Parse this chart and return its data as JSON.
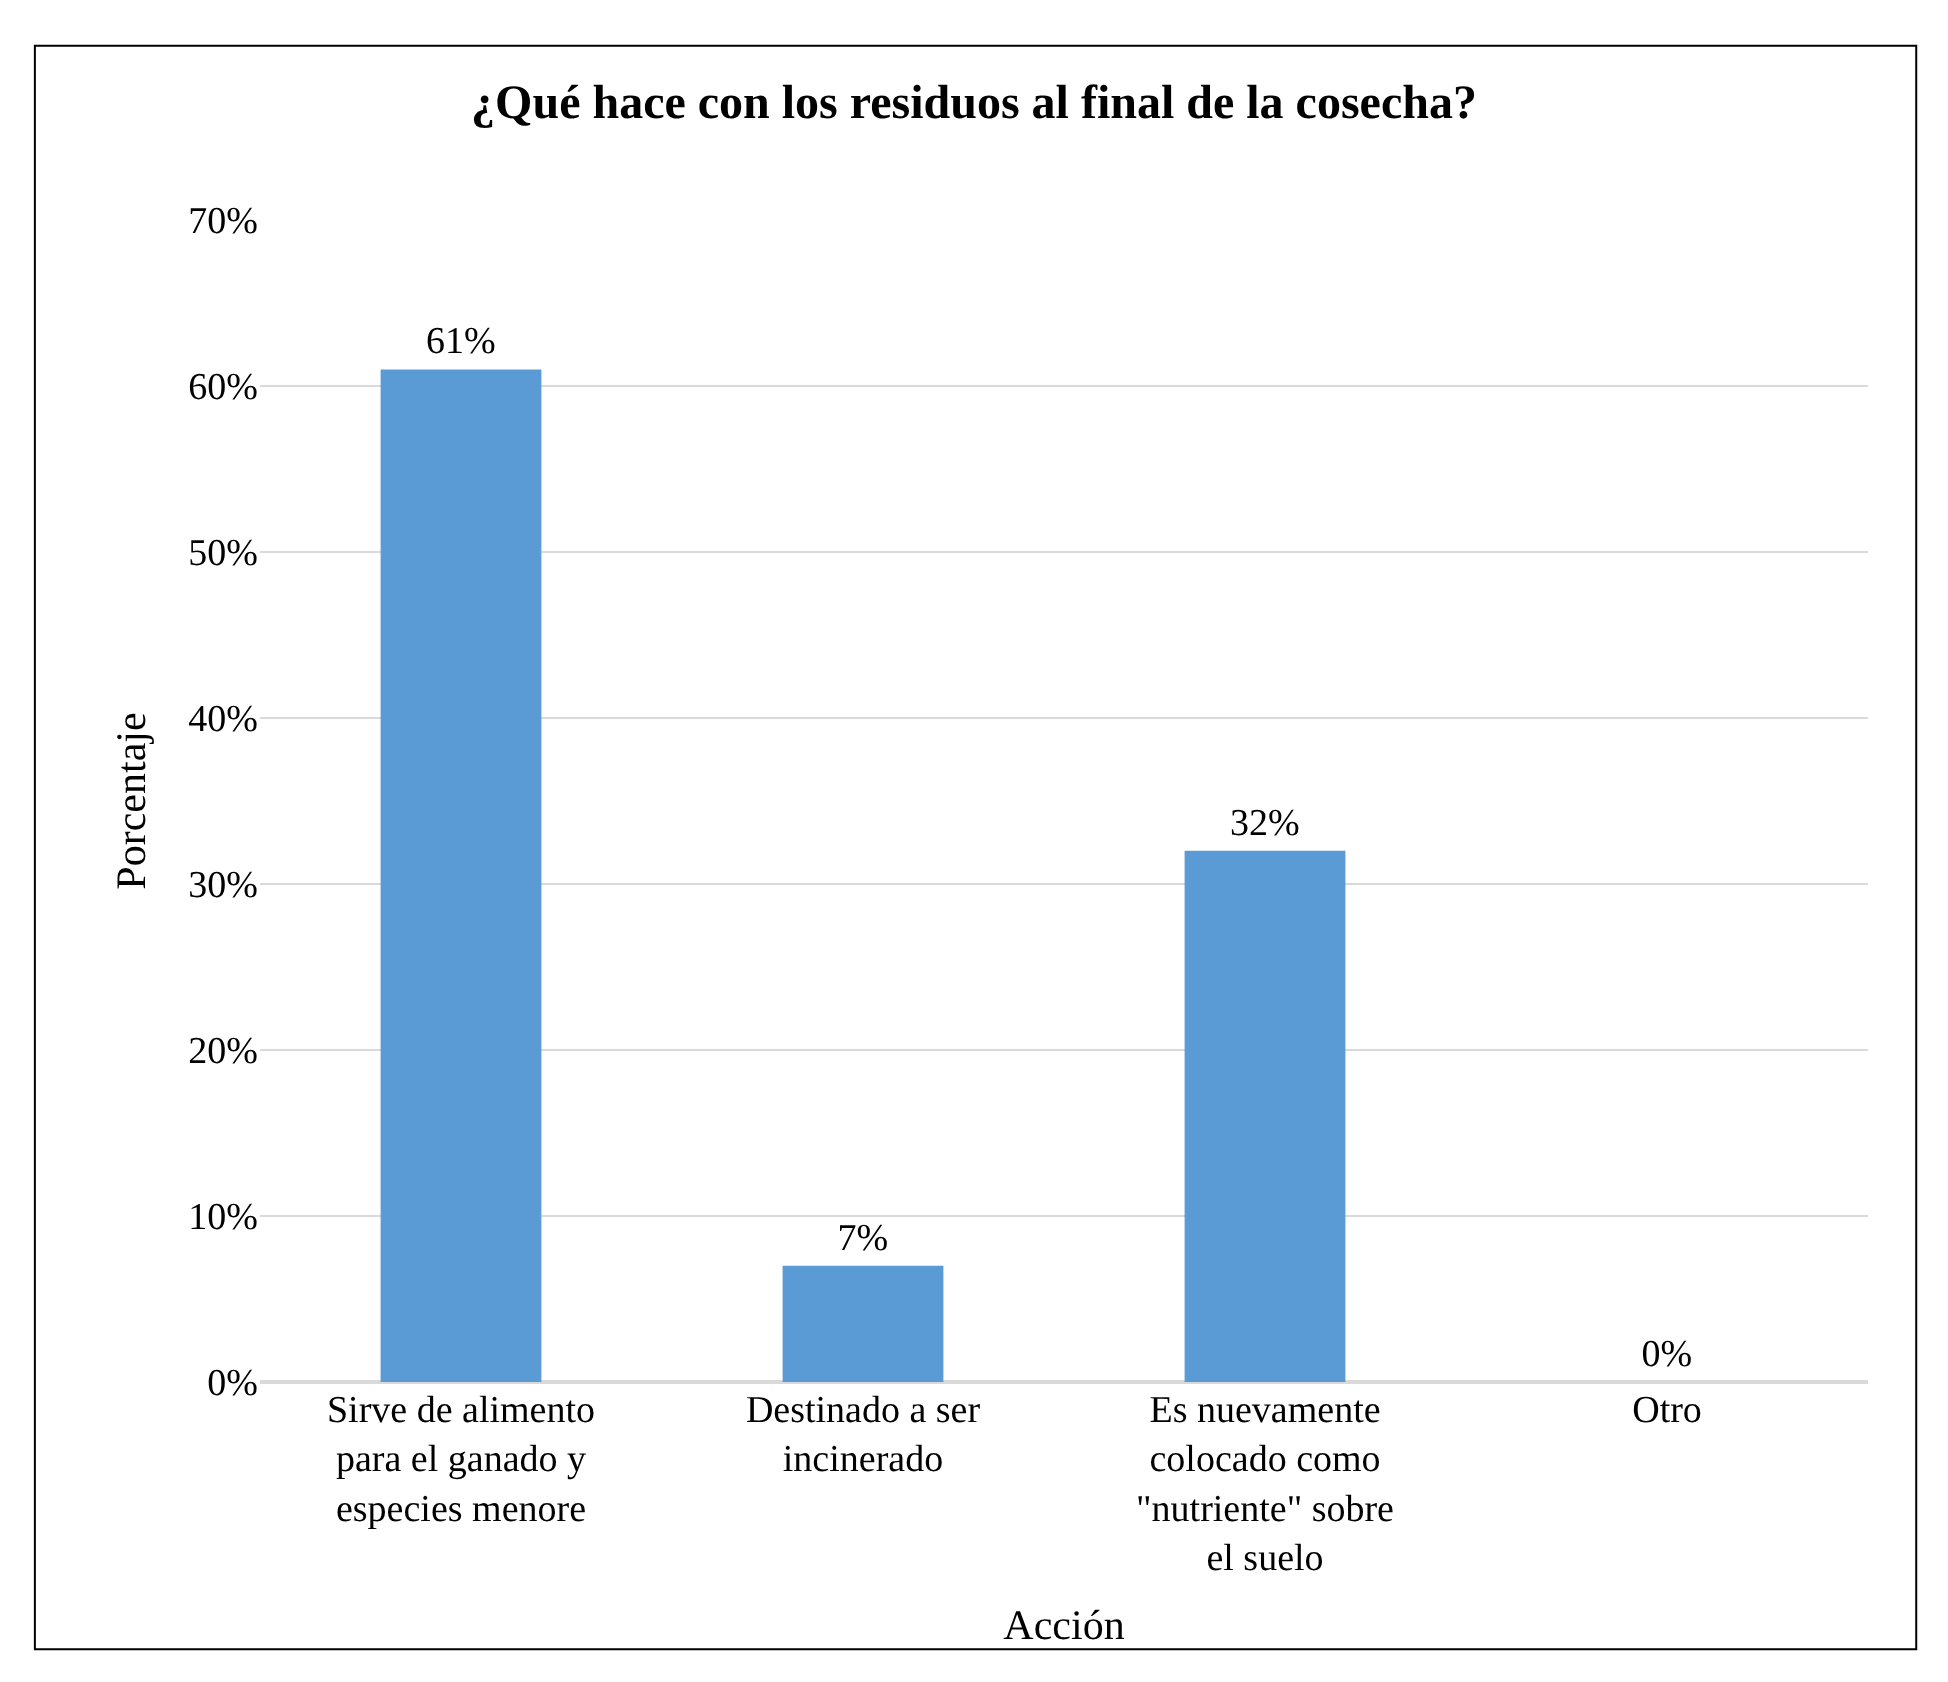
{
  "chart_data": {
    "type": "bar",
    "title": "¿Qué hace con los residuos al final de la cosecha?",
    "xlabel": "Acción",
    "ylabel": "Porcentaje",
    "categories": [
      "Sirve de alimento para el ganado y especies menore",
      "Destinado a ser incinerado",
      "Es nuevamente colocado como \"nutriente\" sobre el suelo",
      "Otro"
    ],
    "values": [
      61,
      7,
      32,
      0
    ],
    "value_labels": [
      "61%",
      "7%",
      "32%",
      "0%"
    ],
    "color": "#5b9bd5",
    "ylim": [
      0,
      70
    ],
    "yticks": [
      {
        "value": 0,
        "label": "0%"
      },
      {
        "value": 10,
        "label": "10%"
      },
      {
        "value": 20,
        "label": "20%"
      },
      {
        "value": 30,
        "label": "30%"
      },
      {
        "value": 40,
        "label": "40%"
      },
      {
        "value": 50,
        "label": "50%"
      },
      {
        "value": 60,
        "label": "60%"
      },
      {
        "value": 70,
        "label": "70%"
      }
    ],
    "grid": "y"
  }
}
